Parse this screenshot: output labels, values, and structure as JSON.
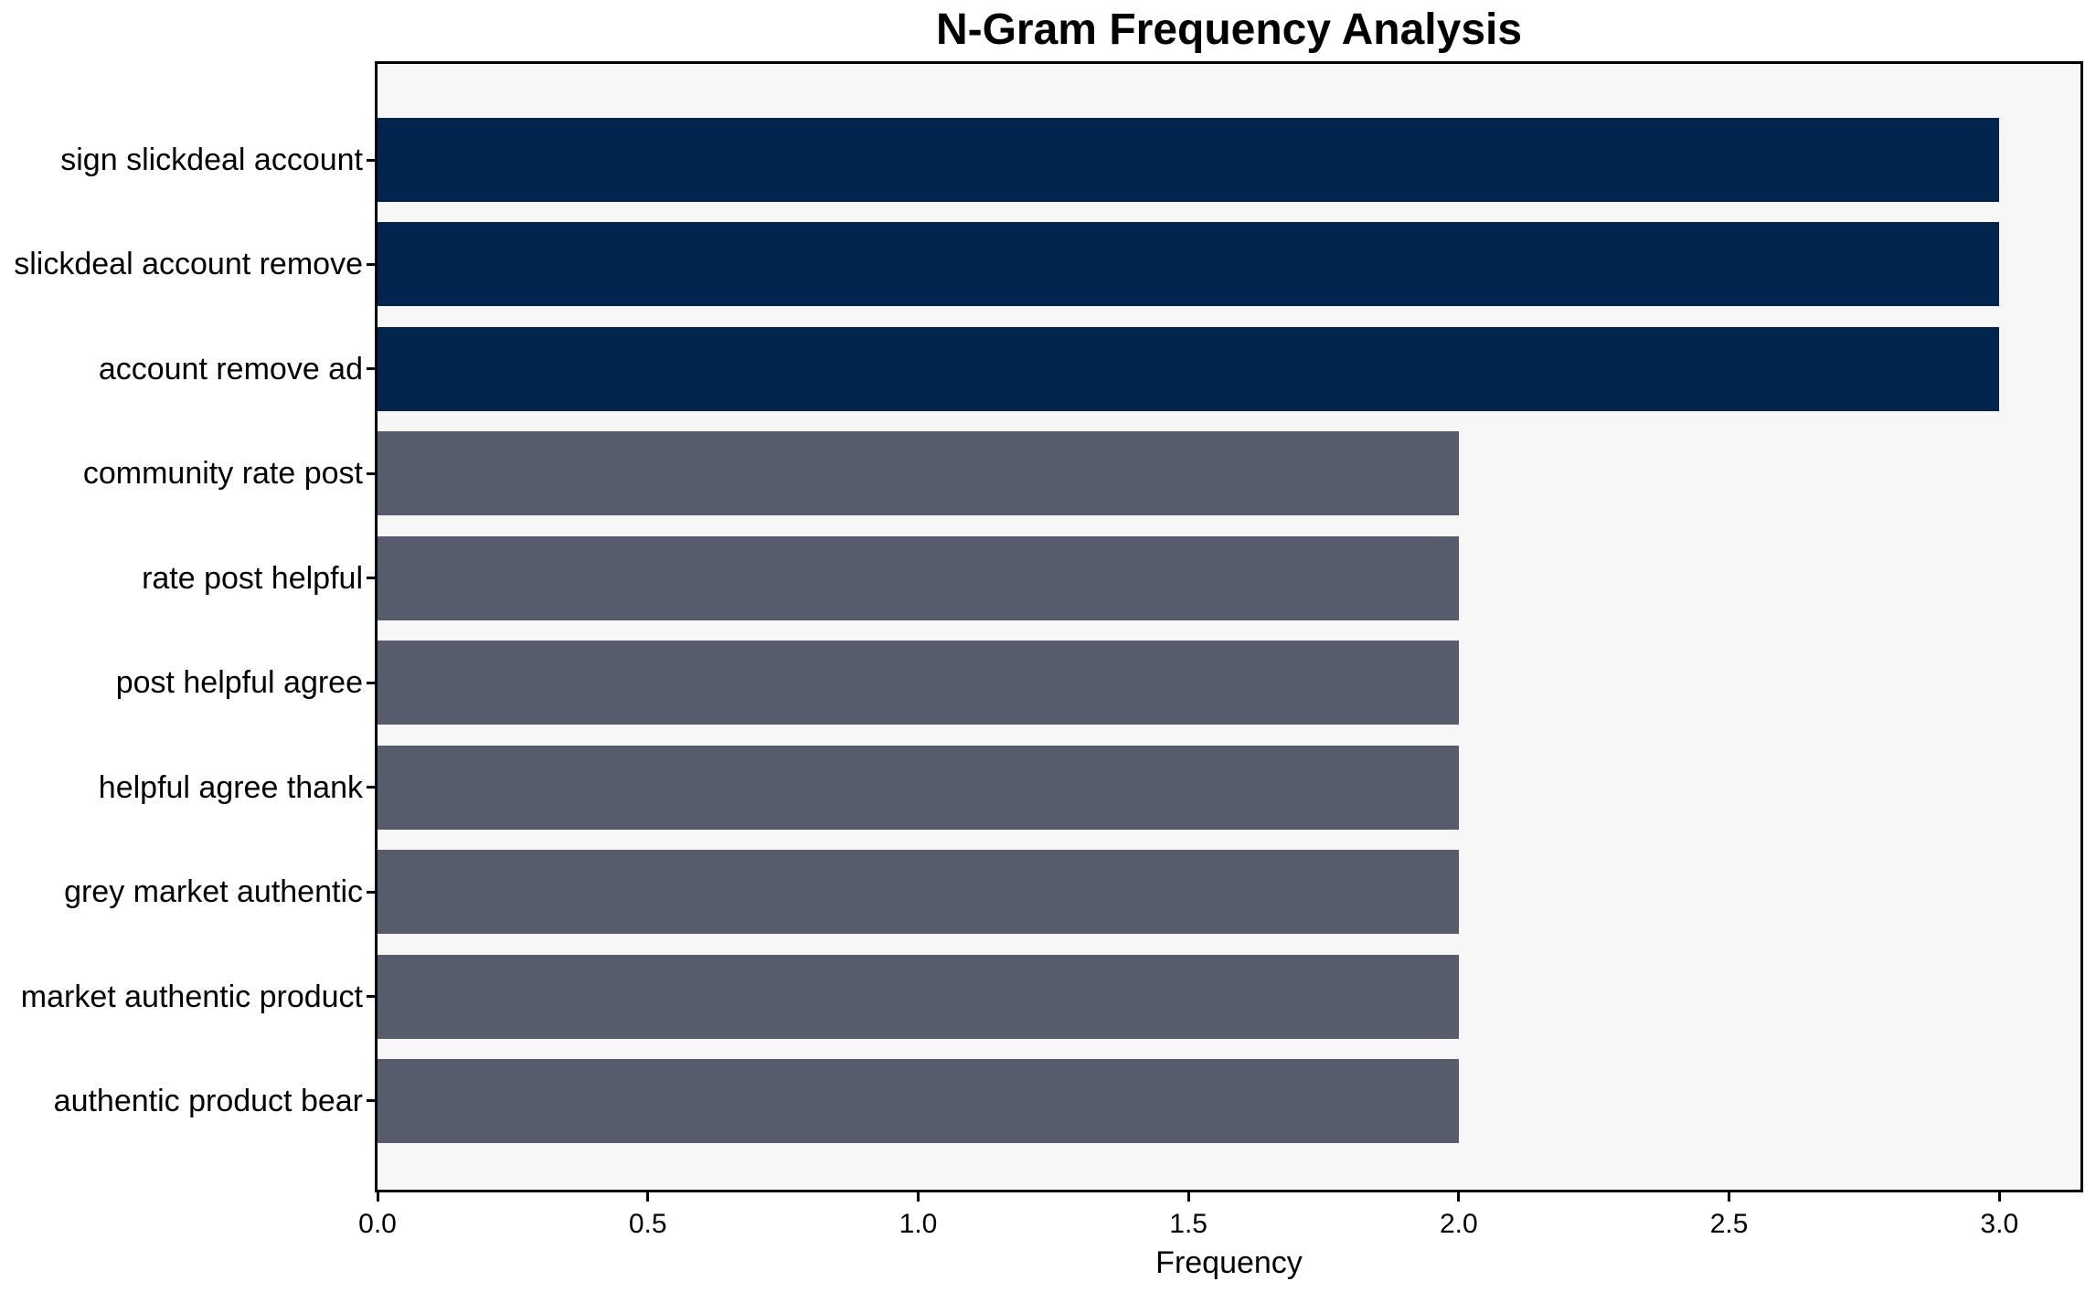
{
  "page": {
    "background_color": "#ffffff"
  },
  "chart_data": {
    "type": "bar",
    "orientation": "horizontal",
    "title": "N-Gram Frequency Analysis",
    "xlabel": "Frequency",
    "ylabel": "",
    "categories": [
      "sign slickdeal account",
      "slickdeal account remove",
      "account remove ad",
      "community rate post",
      "rate post helpful",
      "post helpful agree",
      "helpful agree thank",
      "grey market authentic",
      "market authentic product",
      "authentic product bear"
    ],
    "values": [
      3,
      3,
      3,
      2,
      2,
      2,
      2,
      2,
      2,
      2
    ],
    "bar_colors": [
      "#02254e",
      "#02254e",
      "#02254e",
      "#565c6b",
      "#565c6b",
      "#565c6b",
      "#565c6b",
      "#565c6b",
      "#565c6b",
      "#565c6b"
    ],
    "xlim": [
      0,
      3.15
    ],
    "xticks": [
      0.0,
      0.5,
      1.0,
      1.5,
      2.0,
      2.5,
      3.0
    ],
    "xtick_labels": [
      "0.0",
      "0.5",
      "1.0",
      "1.5",
      "2.0",
      "2.5",
      "3.0"
    ],
    "grid": false,
    "legend": null,
    "colors": {
      "high_value_bar": "#02254e",
      "low_value_bar": "#565c6b",
      "plot_background": "#f7f7f8",
      "spine": "#000000",
      "text": "#000000"
    }
  }
}
